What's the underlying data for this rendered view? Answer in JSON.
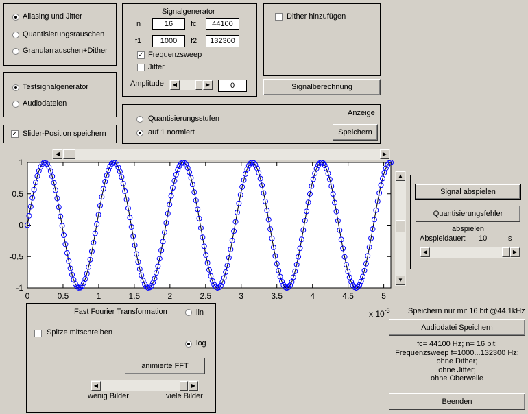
{
  "mode_panel": {
    "options": [
      {
        "label": "Aliasing und Jitter",
        "selected": true
      },
      {
        "label": "Quantisierungsrauschen",
        "selected": false
      },
      {
        "label": "Granularrauschen+Dither",
        "selected": false
      }
    ]
  },
  "source_panel": {
    "options": [
      {
        "label": "Testsignalgenerator",
        "selected": true
      },
      {
        "label": "Audiodateien",
        "selected": false
      }
    ]
  },
  "slider_save": {
    "label": "Slider-Position speichern",
    "checked": true
  },
  "signal_generator": {
    "title": "Signalgenerator",
    "n_label": "n",
    "n_value": "16",
    "fc_label": "fc",
    "fc_value": "44100",
    "f1_label": "f1",
    "f1_value": "1000",
    "f2_label": "f2",
    "f2_value": "132300",
    "sweep_label": "Frequenzsweep",
    "sweep_checked": true,
    "jitter_label": "Jitter",
    "jitter_checked": false,
    "amplitude_label": "Amplitude",
    "amplitude_value": "0"
  },
  "dither": {
    "label": "Dither hinzufügen",
    "checked": false
  },
  "signal_calc_button": "Signalberechnung",
  "display_panel": {
    "title": "Anzeige",
    "options": [
      {
        "label": "Quantisierungsstufen",
        "selected": false
      },
      {
        "label": "auf 1 normiert",
        "selected": true
      }
    ],
    "save_button": "Speichern"
  },
  "playback": {
    "play_signal": "Signal abspielen",
    "play_error": "Quantisierungsfehler abspielen",
    "duration_label": "Abspieldauer:",
    "duration_value": "10",
    "duration_unit": "s"
  },
  "fft_panel": {
    "title": "Fast Fourier Transformation",
    "peak_label": "Spitze mitschreiben",
    "peak_checked": false,
    "scale_options": [
      {
        "label": "lin",
        "selected": false
      },
      {
        "label": "log",
        "selected": true
      }
    ],
    "animate_button": "animierte FFT",
    "slider_left": "wenig Bilder",
    "slider_right": "viele Bilder"
  },
  "save_note": "Speichern nur mit 16 bit @44.1kHz",
  "audio_save_button": "Audiodatei Speichern",
  "info_lines": [
    "fc= 44100 Hz; n= 16 bit;",
    "Frequenzsweep f=1000...132300 Hz;",
    "ohne Dither;",
    "ohne Jitter;",
    "ohne Oberwelle"
  ],
  "quit_button": "Beenden",
  "chart_data": {
    "type": "line",
    "x_range": [
      0,
      5.1
    ],
    "y_range": [
      -1,
      1
    ],
    "x_ticks": [
      "0",
      "0.5",
      "1",
      "1.5",
      "2",
      "2.5",
      "3",
      "3.5",
      "4",
      "4.5",
      "5"
    ],
    "y_ticks": [
      "1",
      "0.5",
      "0",
      "-0.5",
      "-1"
    ],
    "x_exponent": "x 10",
    "x_exponent_power": "-3",
    "series": [
      {
        "style": "line",
        "color": "#000000",
        "frequency_khz": 1.03,
        "amplitude": 1
      },
      {
        "style": "circle-markers",
        "color": "#0000ff",
        "frequency_khz": 1.03,
        "amplitude": 1
      }
    ]
  }
}
